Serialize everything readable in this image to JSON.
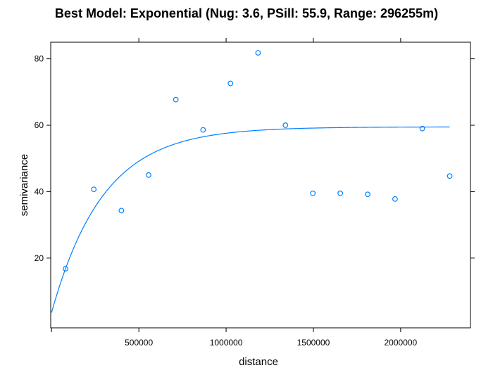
{
  "chart_data": {
    "type": "scatter",
    "title": "Best Model: Exponential (Nug: 3.6, PSill: 55.9, Range: 296255m)",
    "xlabel": "distance",
    "ylabel": "semivariance",
    "xlim": [
      -5000,
      2400000
    ],
    "ylim": [
      -1,
      85
    ],
    "xticks": [
      500000,
      1000000,
      1500000,
      2000000
    ],
    "xtick_labels": [
      "500000",
      "1000000",
      "1500000",
      "2000000"
    ],
    "yticks": [
      20,
      40,
      60,
      80
    ],
    "ytick_labels": [
      "20",
      "40",
      "60",
      "80"
    ],
    "grid": false,
    "legend": "none",
    "points_color": "#0080ff",
    "line_color": "#0080ff",
    "series": [
      {
        "type": "scatter",
        "x": [
          80000,
          242000,
          400000,
          556000,
          712000,
          868000,
          1025000,
          1183000,
          1340000,
          1497000,
          1654000,
          1811000,
          1968000,
          2124000,
          2281000
        ],
        "y": [
          16.8,
          40.7,
          34.3,
          45.0,
          67.7,
          58.6,
          72.6,
          81.8,
          60.0,
          39.5,
          39.5,
          39.2,
          37.8,
          59.0,
          44.7
        ]
      },
      {
        "type": "line",
        "model": "exponential",
        "nugget": 3.6,
        "psill": 55.9,
        "range": 296255,
        "x_start": 0,
        "x_end": 2281000
      }
    ]
  }
}
